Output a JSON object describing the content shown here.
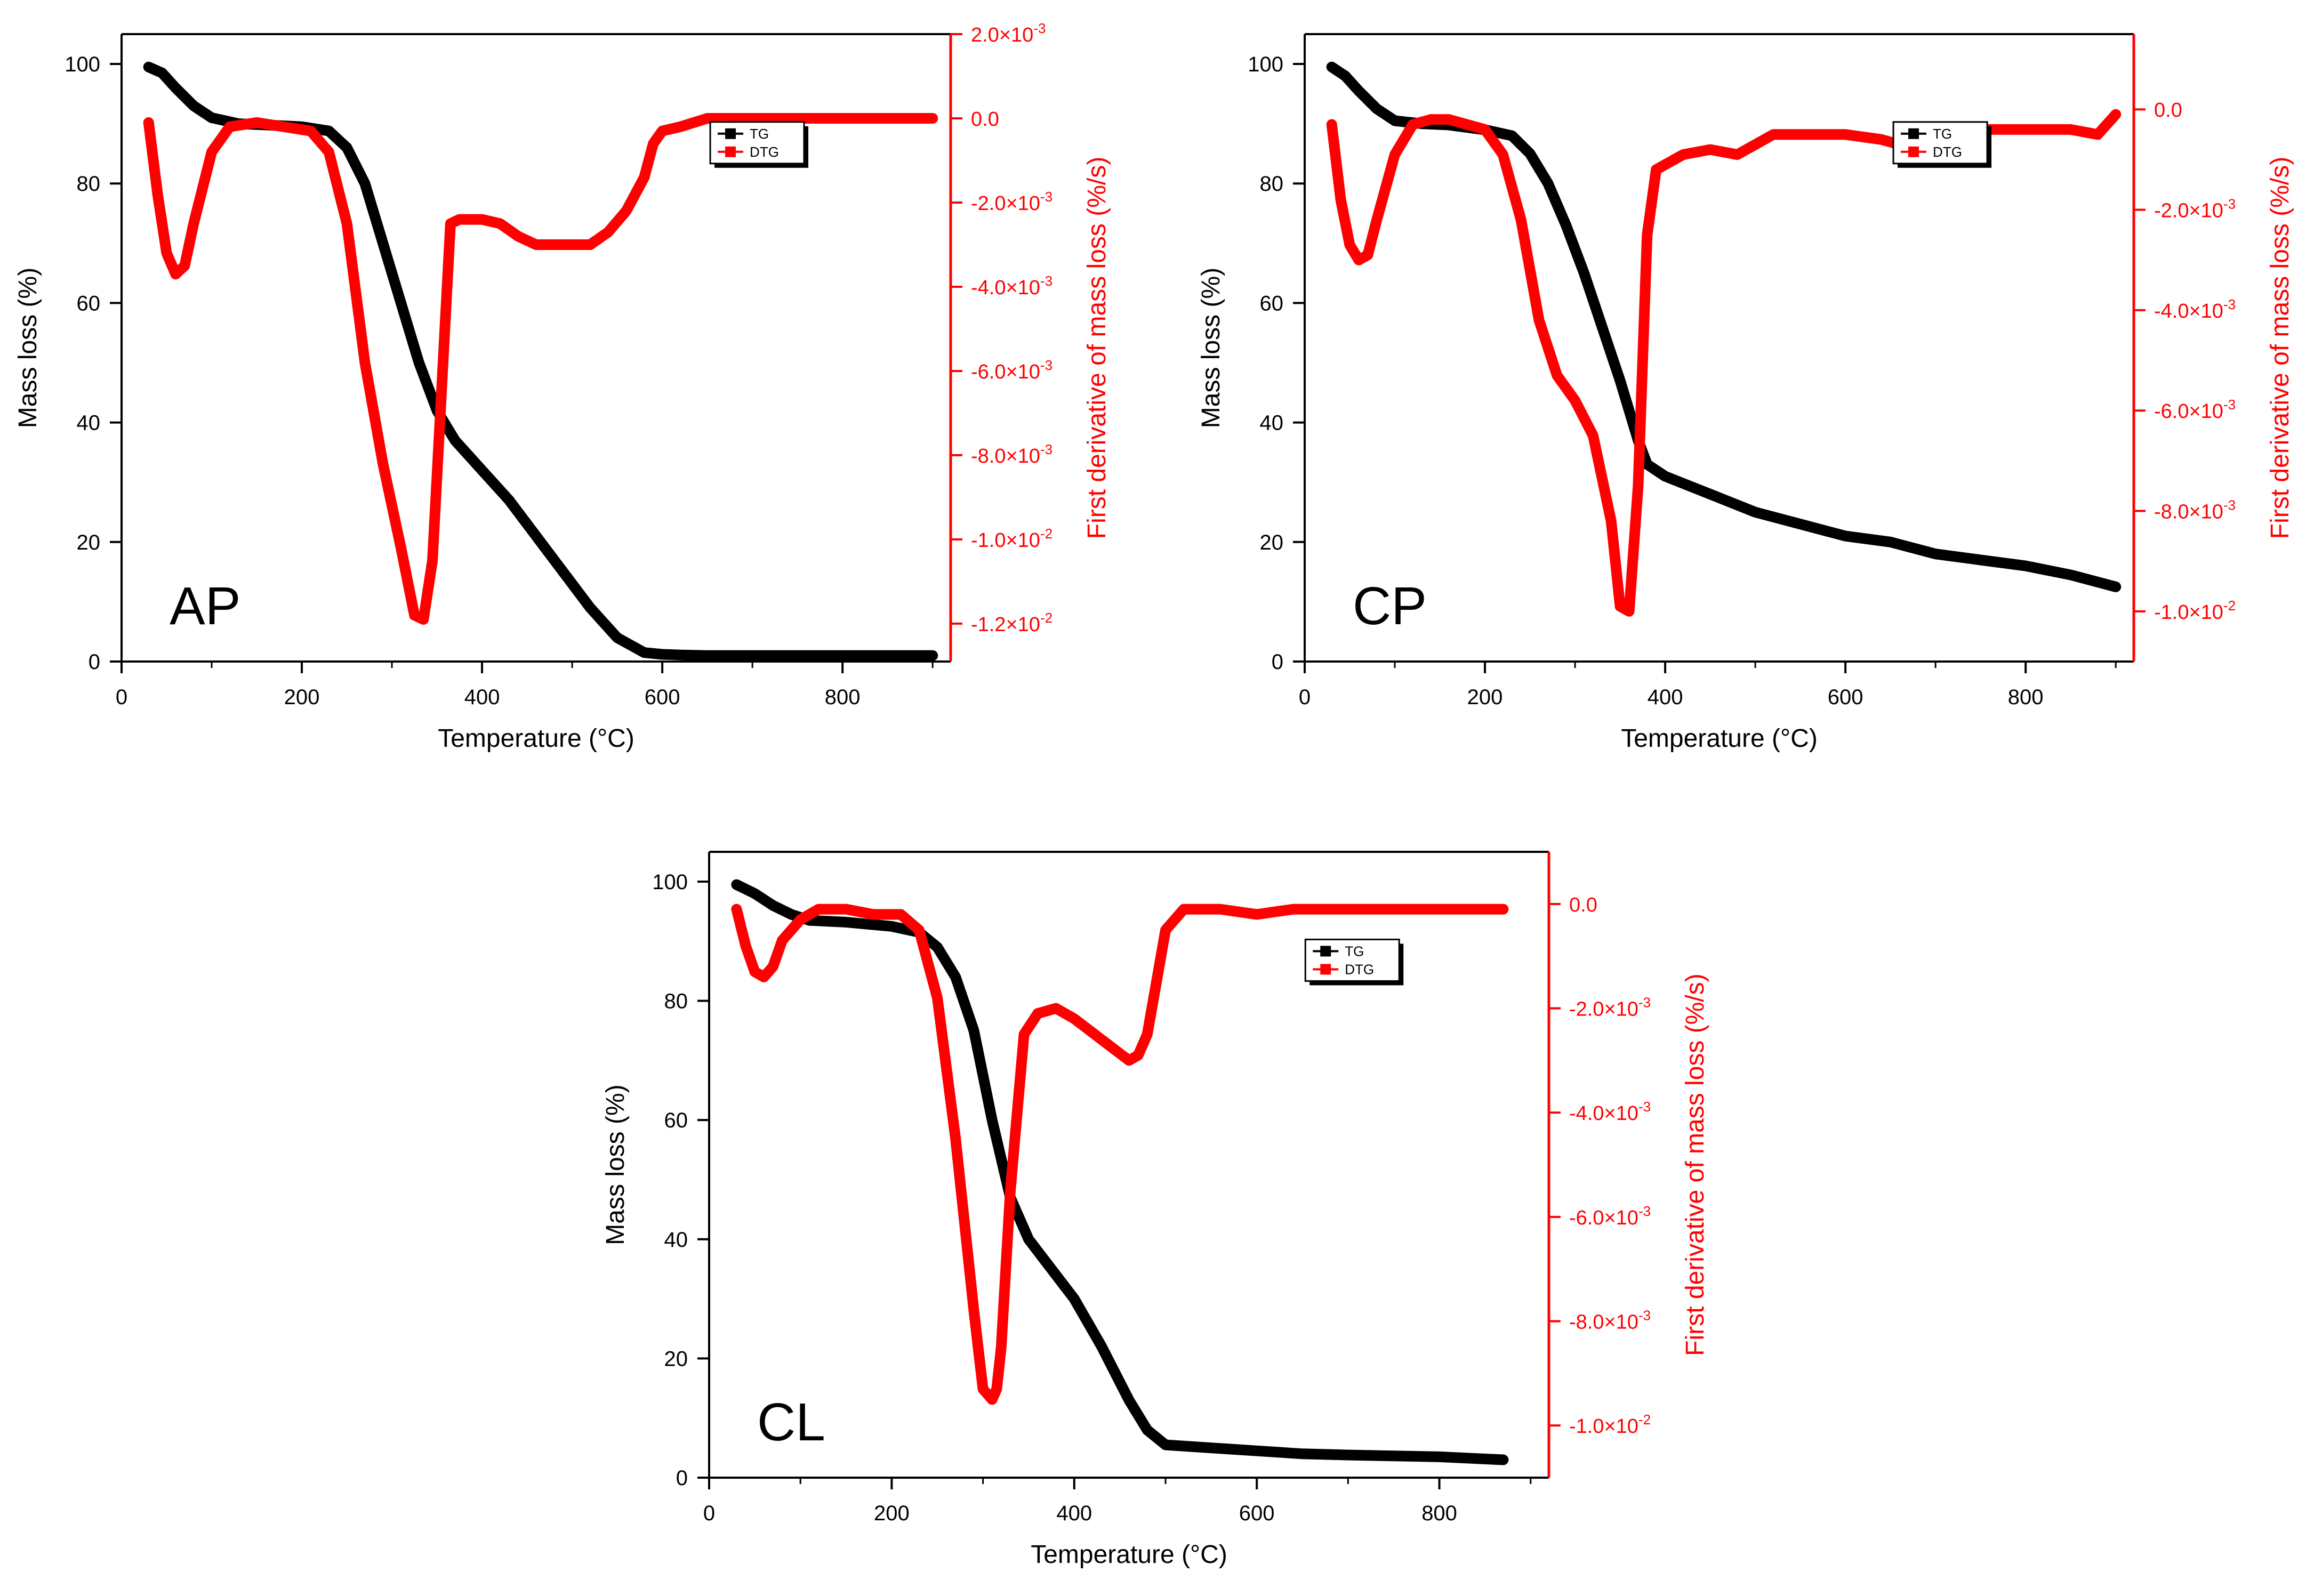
{
  "colors": {
    "tg": "#000000",
    "dtg": "#ff0000",
    "axis": "#000000",
    "axis_right": "#ff0000"
  },
  "chart_data": [
    {
      "type": "line",
      "panel_label": "AP",
      "xlabel": "Temperature (°C)",
      "ylabel": "Mass loss (%)",
      "y2label": "First derivative of mass loss (%/s)",
      "xlim": [
        0,
        920
      ],
      "ylim": [
        0,
        105
      ],
      "y2lim": [
        -0.0129,
        0.002
      ],
      "xticks": [
        0,
        200,
        400,
        600,
        800
      ],
      "yticks": [
        0,
        20,
        40,
        60,
        80,
        100
      ],
      "y2ticks": [
        {
          "value": 0.002,
          "mant": "2.0",
          "exp": "-3"
        },
        {
          "value": 0.0,
          "mant": "0.0",
          "exp": ""
        },
        {
          "value": -0.002,
          "mant": "-2.0",
          "exp": "-3"
        },
        {
          "value": -0.004,
          "mant": "-4.0",
          "exp": "-3"
        },
        {
          "value": -0.006,
          "mant": "-6.0",
          "exp": "-3"
        },
        {
          "value": -0.008,
          "mant": "-8.0",
          "exp": "-3"
        },
        {
          "value": -0.01,
          "mant": "-1.0",
          "exp": "-2"
        },
        {
          "value": -0.012,
          "mant": "-1.2",
          "exp": "-2"
        }
      ],
      "legend": {
        "position": "top-right",
        "entries": [
          "TG",
          "DTG"
        ]
      },
      "series": [
        {
          "name": "TG",
          "axis": "left",
          "x": [
            30,
            45,
            60,
            80,
            100,
            130,
            160,
            200,
            230,
            250,
            270,
            290,
            310,
            330,
            350,
            370,
            400,
            430,
            460,
            490,
            520,
            550,
            580,
            600,
            620,
            650,
            700,
            800,
            900
          ],
          "y": [
            99.5,
            98.5,
            96,
            93,
            91,
            90,
            89.8,
            89.5,
            88.8,
            86,
            80,
            70,
            60,
            50,
            42,
            37,
            32,
            27,
            21,
            15,
            9,
            4,
            1.5,
            1.2,
            1.1,
            1.0,
            1.0,
            1.0,
            1.0
          ]
        },
        {
          "name": "DTG",
          "axis": "right",
          "x": [
            30,
            40,
            50,
            60,
            70,
            80,
            100,
            120,
            150,
            180,
            210,
            230,
            250,
            270,
            290,
            310,
            325,
            335,
            345,
            355,
            365,
            375,
            400,
            420,
            440,
            460,
            480,
            500,
            520,
            540,
            560,
            580,
            590,
            600,
            620,
            650,
            700,
            800,
            900
          ],
          "y": [
            -0.0001,
            -0.0018,
            -0.0032,
            -0.0037,
            -0.0035,
            -0.0025,
            -0.0008,
            -0.0002,
            -0.0001,
            -0.0002,
            -0.0003,
            -0.0008,
            -0.0025,
            -0.0058,
            -0.0082,
            -0.0102,
            -0.0118,
            -0.0119,
            -0.0105,
            -0.0065,
            -0.0025,
            -0.0024,
            -0.0024,
            -0.0025,
            -0.0028,
            -0.003,
            -0.003,
            -0.003,
            -0.003,
            -0.0027,
            -0.0022,
            -0.0014,
            -0.0006,
            -0.0003,
            -0.0002,
            0.0,
            0.0,
            0.0,
            0.0
          ]
        }
      ]
    },
    {
      "type": "line",
      "panel_label": "CP",
      "xlabel": "Temperature (°C)",
      "ylabel": "Mass loss (%)",
      "y2label": "First derivative of mass loss (%/s)",
      "xlim": [
        0,
        920
      ],
      "ylim": [
        0,
        105
      ],
      "y2lim": [
        -0.011,
        0.0015
      ],
      "xticks": [
        0,
        200,
        400,
        600,
        800
      ],
      "yticks": [
        0,
        20,
        40,
        60,
        80,
        100
      ],
      "y2ticks": [
        {
          "value": 0.0,
          "mant": "0.0",
          "exp": ""
        },
        {
          "value": -0.002,
          "mant": "-2.0",
          "exp": "-3"
        },
        {
          "value": -0.004,
          "mant": "-4.0",
          "exp": "-3"
        },
        {
          "value": -0.006,
          "mant": "-6.0",
          "exp": "-3"
        },
        {
          "value": -0.008,
          "mant": "-8.0",
          "exp": "-3"
        },
        {
          "value": -0.01,
          "mant": "-1.0",
          "exp": "-2"
        }
      ],
      "legend": {
        "position": "top-right",
        "entries": [
          "TG",
          "DTG"
        ]
      },
      "series": [
        {
          "name": "TG",
          "axis": "left",
          "x": [
            30,
            45,
            60,
            80,
            100,
            130,
            160,
            200,
            230,
            250,
            270,
            290,
            310,
            330,
            350,
            370,
            380,
            400,
            450,
            500,
            550,
            600,
            650,
            700,
            750,
            800,
            850,
            900
          ],
          "y": [
            99.5,
            98,
            95.5,
            92.5,
            90.5,
            90,
            89.8,
            89,
            88,
            85,
            80,
            73,
            65,
            56,
            47,
            37,
            33,
            31,
            28,
            25,
            23,
            21,
            20,
            18,
            17,
            16,
            14.5,
            12.5
          ]
        },
        {
          "name": "DTG",
          "axis": "right",
          "x": [
            30,
            40,
            50,
            60,
            70,
            80,
            100,
            120,
            140,
            160,
            180,
            200,
            220,
            240,
            260,
            280,
            300,
            320,
            340,
            350,
            360,
            370,
            380,
            390,
            400,
            420,
            450,
            480,
            500,
            520,
            560,
            600,
            640,
            660,
            680,
            700,
            750,
            800,
            850,
            880,
            890,
            900
          ],
          "y": [
            -0.0003,
            -0.0018,
            -0.0027,
            -0.003,
            -0.0029,
            -0.0022,
            -0.0009,
            -0.0003,
            -0.0002,
            -0.0002,
            -0.0003,
            -0.0004,
            -0.0009,
            -0.0022,
            -0.0042,
            -0.0053,
            -0.0058,
            -0.0065,
            -0.0082,
            -0.0099,
            -0.01,
            -0.0075,
            -0.0025,
            -0.0012,
            -0.0011,
            -0.0009,
            -0.0008,
            -0.0009,
            -0.0007,
            -0.0005,
            -0.0005,
            -0.0005,
            -0.0006,
            -0.0007,
            -0.0006,
            -0.0004,
            -0.0004,
            -0.0004,
            -0.0004,
            -0.0005,
            -0.0003,
            -0.0001
          ]
        }
      ]
    },
    {
      "type": "line",
      "panel_label": "CL",
      "xlabel": "Temperature (°C)",
      "ylabel": "Mass loss (%)",
      "y2label": "First derivative of mass loss (%/s)",
      "xlim": [
        0,
        920
      ],
      "ylim": [
        0,
        105
      ],
      "y2lim": [
        -0.011,
        0.001
      ],
      "xticks": [
        0,
        200,
        400,
        600,
        800
      ],
      "yticks": [
        0,
        20,
        40,
        60,
        80,
        100
      ],
      "y2ticks": [
        {
          "value": 0.0,
          "mant": "0.0",
          "exp": ""
        },
        {
          "value": -0.002,
          "mant": "-2.0",
          "exp": "-3"
        },
        {
          "value": -0.004,
          "mant": "-4.0",
          "exp": "-3"
        },
        {
          "value": -0.006,
          "mant": "-6.0",
          "exp": "-3"
        },
        {
          "value": -0.008,
          "mant": "-8.0",
          "exp": "-3"
        },
        {
          "value": -0.01,
          "mant": "-1.0",
          "exp": "-2"
        }
      ],
      "legend": {
        "position": "top-right",
        "entries": [
          "TG",
          "DTG"
        ]
      },
      "series": [
        {
          "name": "TG",
          "axis": "left",
          "x": [
            30,
            50,
            70,
            90,
            110,
            150,
            200,
            230,
            250,
            270,
            290,
            310,
            330,
            350,
            370,
            400,
            430,
            460,
            480,
            500,
            550,
            600,
            650,
            700,
            800,
            870
          ],
          "y": [
            99.5,
            98,
            96,
            94.5,
            93.5,
            93.2,
            92.5,
            91.5,
            89,
            84,
            75,
            60,
            47,
            40,
            36,
            30,
            22,
            13,
            8,
            5.5,
            5,
            4.5,
            4,
            3.8,
            3.5,
            3
          ]
        },
        {
          "name": "DTG",
          "axis": "right",
          "x": [
            30,
            40,
            50,
            60,
            70,
            80,
            100,
            120,
            150,
            180,
            210,
            230,
            250,
            270,
            290,
            300,
            310,
            315,
            320,
            330,
            345,
            360,
            380,
            400,
            430,
            460,
            470,
            480,
            490,
            500,
            520,
            560,
            600,
            640,
            700,
            800,
            870
          ],
          "y": [
            -0.0001,
            -0.0008,
            -0.0013,
            -0.0014,
            -0.0012,
            -0.0007,
            -0.0003,
            -0.0001,
            -0.0001,
            -0.0002,
            -0.0002,
            -0.0005,
            -0.0018,
            -0.0045,
            -0.0078,
            -0.0093,
            -0.0095,
            -0.0093,
            -0.0085,
            -0.0055,
            -0.0025,
            -0.0021,
            -0.002,
            -0.0022,
            -0.0026,
            -0.003,
            -0.0029,
            -0.0025,
            -0.0015,
            -0.0005,
            -0.0001,
            -0.0001,
            -0.0002,
            -0.0001,
            -0.0001,
            -0.0001,
            -0.0001
          ]
        }
      ]
    }
  ]
}
